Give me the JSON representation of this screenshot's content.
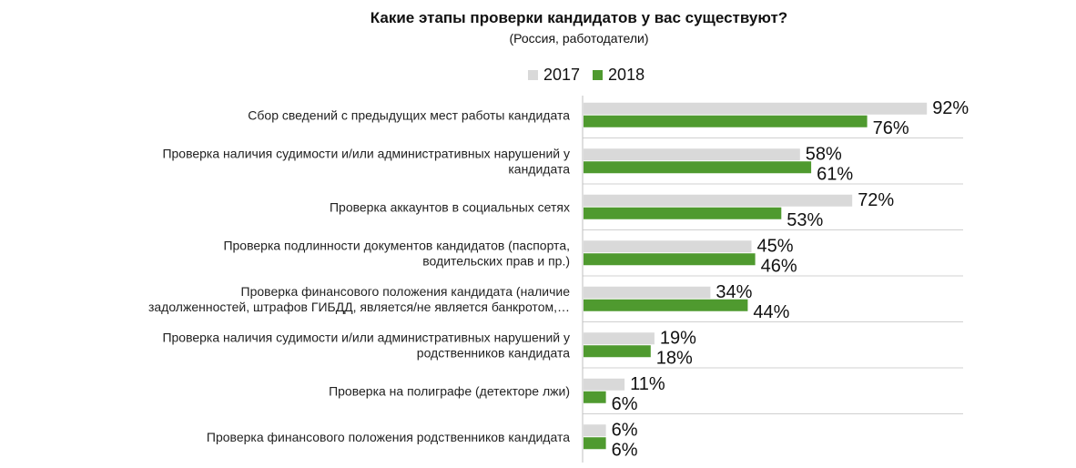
{
  "chart_data": {
    "type": "bar",
    "orientation": "horizontal",
    "title": "Какие этапы проверки кандидатов у вас существуют?",
    "subtitle": "(Россия, работодатели)",
    "categories": [
      [
        "Сбор сведений с предыдущих мест работы кандидата"
      ],
      [
        "Проверка наличия судимости и/или административных нарушений у",
        "кандидата"
      ],
      [
        "Проверка аккаунтов в социальных сетях"
      ],
      [
        "Проверка подлинности документов кандидатов (паспорта,",
        "водительских прав и пр.)"
      ],
      [
        "Проверка финансового положения кандидата (наличие",
        "задолженностей, штрафов ГИБДД, является/не является банкротом,…"
      ],
      [
        "Проверка наличия судимости и/или административных нарушений у",
        "родственников кандидата"
      ],
      [
        "Проверка на полиграфе (детекторе лжи)"
      ],
      [
        "Проверка финансового положения родственников кандидата"
      ]
    ],
    "series": [
      {
        "name": "2017",
        "color": "#d9d9d9",
        "values": [
          92,
          58,
          72,
          45,
          34,
          19,
          11,
          6
        ]
      },
      {
        "name": "2018",
        "color": "#4f9a2f",
        "values": [
          76,
          61,
          53,
          46,
          44,
          18,
          6,
          6
        ]
      }
    ],
    "value_suffix": "%",
    "xlim": [
      0,
      100
    ],
    "legend_position": "top"
  }
}
